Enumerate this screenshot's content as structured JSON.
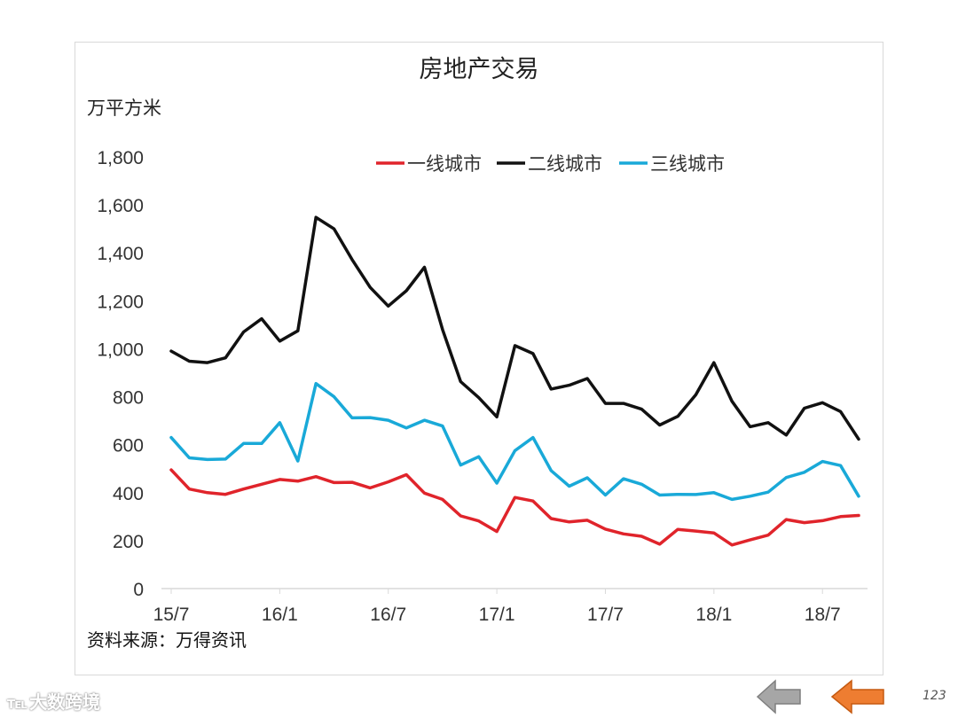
{
  "slide": {
    "title": "房地产交易",
    "unit_label": "万平方米",
    "source": "资料来源：万得资讯",
    "page_number": "123",
    "watermark": "大数跨境"
  },
  "colors": {
    "series_tier1": "#e0242b",
    "series_tier2": "#111111",
    "series_tier3": "#19a9d8",
    "nav_prev": "#a6a6a6",
    "nav_next": "#ee7d31"
  },
  "chart_data": {
    "type": "line",
    "title": "房地产交易",
    "ylabel": "万平方米",
    "xlabel": "",
    "ylim": [
      0,
      1800
    ],
    "yticks": [
      "0",
      "200",
      "400",
      "600",
      "800",
      "1,000",
      "1,200",
      "1,400",
      "1,600",
      "1,800"
    ],
    "ytick_values": [
      0,
      200,
      400,
      600,
      800,
      1000,
      1200,
      1400,
      1600,
      1800
    ],
    "xtick_labels": [
      "15/7",
      "16/1",
      "16/7",
      "17/1",
      "17/7",
      "18/1",
      "18/7"
    ],
    "xtick_indices": [
      0,
      6,
      12,
      18,
      24,
      30,
      36
    ],
    "x": [
      "15/7",
      "15/8",
      "15/9",
      "15/10",
      "15/11",
      "15/12",
      "16/1",
      "16/2",
      "16/3",
      "16/4",
      "16/5",
      "16/6",
      "16/7",
      "16/8",
      "16/9",
      "16/10",
      "16/11",
      "16/12",
      "17/1",
      "17/2",
      "17/3",
      "17/4",
      "17/5",
      "17/6",
      "17/7",
      "17/8",
      "17/9",
      "17/10",
      "17/11",
      "17/12",
      "18/1",
      "18/2",
      "18/3",
      "18/4",
      "18/5",
      "18/6",
      "18/7",
      "18/8",
      "18/9"
    ],
    "legend_position": "top-center",
    "grid": false,
    "series": [
      {
        "name": "一线城市",
        "color_key": "series_tier1",
        "values": [
          495,
          415,
          400,
          393,
          415,
          435,
          455,
          448,
          467,
          442,
          443,
          420,
          445,
          475,
          398,
          372,
          303,
          282,
          238,
          380,
          365,
          292,
          278,
          285,
          248,
          228,
          218,
          185,
          247,
          240,
          232,
          182,
          203,
          223,
          288,
          275,
          283,
          300,
          305
        ]
      },
      {
        "name": "二线城市",
        "color_key": "series_tier2",
        "values": [
          990,
          948,
          942,
          962,
          1070,
          1125,
          1032,
          1075,
          1548,
          1500,
          1372,
          1256,
          1178,
          1242,
          1340,
          1080,
          863,
          796,
          716,
          1013,
          980,
          832,
          848,
          876,
          772,
          772,
          748,
          682,
          718,
          808,
          942,
          781,
          675,
          692,
          640,
          752,
          775,
          738,
          623
        ]
      },
      {
        "name": "三线城市",
        "color_key": "series_tier3",
        "values": [
          630,
          545,
          538,
          540,
          605,
          605,
          692,
          532,
          855,
          800,
          712,
          713,
          702,
          670,
          702,
          678,
          515,
          550,
          440,
          575,
          630,
          492,
          427,
          462,
          390,
          458,
          435,
          390,
          393,
          392,
          400,
          372,
          385,
          402,
          463,
          485,
          530,
          513,
          385
        ]
      }
    ]
  }
}
